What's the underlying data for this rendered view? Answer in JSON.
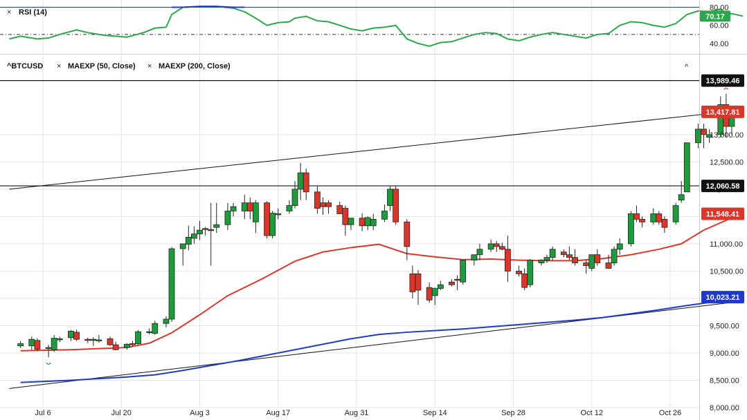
{
  "rsi_panel": {
    "legend": "RSI (14)",
    "ylim": [
      30,
      85
    ],
    "ticks": [
      "80.00",
      "60.00",
      "40.00"
    ],
    "tick_values": [
      80,
      60,
      40
    ],
    "overbought": 80,
    "midline": 50,
    "current_label": "70.17",
    "current_value": 70.17
  },
  "price_panel": {
    "symbol": "^BTCUSD",
    "legend_items": [
      "MAEXP (50, Close)",
      "MAEXP (200, Close)"
    ],
    "ylim": [
      8000,
      14200
    ],
    "y_ticks": [
      "13,000.00",
      "12,500.00",
      "12,000.00",
      "11,500.00",
      "11,000.00",
      "10,500.00",
      "10,000.00",
      "9,500.00",
      "9,000.00",
      "8,500.00",
      "8,000.00"
    ],
    "y_tick_values": [
      13000,
      12500,
      12000,
      11500,
      11000,
      10500,
      10000,
      9500,
      9000,
      8500,
      8000
    ],
    "price_tags": [
      {
        "label": "13,989.46",
        "value": 13989.46,
        "color": "#111111"
      },
      {
        "label": "13,417.81",
        "value": 13417.81,
        "color": "#d9372b"
      },
      {
        "label": "12,060.58",
        "value": 12060.58,
        "color": "#111111"
      },
      {
        "label": "11,548.41",
        "value": 11548.41,
        "color": "#d9372b"
      },
      {
        "label": "10,023.21",
        "value": 10023.21,
        "color": "#1f39c8"
      }
    ],
    "horizontal_lines": [
      13989.46,
      12060.58
    ]
  },
  "x_axis": {
    "labels": [
      "Jul 6",
      "Jul 20",
      "Aug 3",
      "Aug 17",
      "Aug 31",
      "Sep 14",
      "Sep 28",
      "Oct 12",
      "Oct 26"
    ],
    "label_day_index": [
      5,
      19,
      33,
      47,
      61,
      75,
      89,
      103,
      117
    ]
  },
  "colors": {
    "up": "#1f9a3c",
    "down": "#d9372b",
    "ema50": "#d9372b",
    "ema200": "#1f39c8",
    "rsi": "#2aa84a",
    "rsi_overbought": "#1f39c8",
    "grid": "#e4e4e4"
  },
  "chart_data": {
    "type": "candlestick",
    "title": "^BTCUSD",
    "x_unit": "days since Jul 1",
    "candles": [
      {
        "d": 1,
        "o": 9130,
        "h": 9220,
        "l": 9090,
        "c": 9170
      },
      {
        "d": 3,
        "o": 9130,
        "h": 9300,
        "l": 9060,
        "c": 9250
      },
      {
        "d": 4,
        "o": 9230,
        "h": 9270,
        "l": 9030,
        "c": 9070
      },
      {
        "d": 6,
        "o": 9080,
        "h": 9150,
        "l": 8920,
        "c": 9100
      },
      {
        "d": 7,
        "o": 9060,
        "h": 9330,
        "l": 9020,
        "c": 9270
      },
      {
        "d": 8,
        "o": 9250,
        "h": 9300,
        "l": 9200,
        "c": 9260
      },
      {
        "d": 10,
        "o": 9280,
        "h": 9420,
        "l": 9220,
        "c": 9400
      },
      {
        "d": 11,
        "o": 9380,
        "h": 9430,
        "l": 9220,
        "c": 9250
      },
      {
        "d": 13,
        "o": 9250,
        "h": 9280,
        "l": 9180,
        "c": 9230
      },
      {
        "d": 14,
        "o": 9230,
        "h": 9290,
        "l": 9130,
        "c": 9250
      },
      {
        "d": 15,
        "o": 9230,
        "h": 9330,
        "l": 9190,
        "c": 9240
      },
      {
        "d": 17,
        "o": 9260,
        "h": 9300,
        "l": 9130,
        "c": 9150
      },
      {
        "d": 18,
        "o": 9150,
        "h": 9210,
        "l": 9050,
        "c": 9060
      },
      {
        "d": 20,
        "o": 9100,
        "h": 9180,
        "l": 9060,
        "c": 9160
      },
      {
        "d": 21,
        "o": 9170,
        "h": 9220,
        "l": 9120,
        "c": 9150
      },
      {
        "d": 22,
        "o": 9170,
        "h": 9420,
        "l": 9150,
        "c": 9390
      },
      {
        "d": 24,
        "o": 9380,
        "h": 9450,
        "l": 9340,
        "c": 9390
      },
      {
        "d": 25,
        "o": 9360,
        "h": 9590,
        "l": 9330,
        "c": 9540
      },
      {
        "d": 27,
        "o": 9540,
        "h": 9670,
        "l": 9470,
        "c": 9620
      },
      {
        "d": 28,
        "o": 9620,
        "h": 10940,
        "l": 9570,
        "c": 10910
      },
      {
        "d": 30,
        "o": 10910,
        "h": 11000,
        "l": 10600,
        "c": 11000
      },
      {
        "d": 31,
        "o": 10990,
        "h": 11330,
        "l": 10880,
        "c": 11120
      },
      {
        "d": 32,
        "o": 11100,
        "h": 11320,
        "l": 11000,
        "c": 11180
      },
      {
        "d": 33,
        "o": 11180,
        "h": 11420,
        "l": 11070,
        "c": 11250
      },
      {
        "d": 34,
        "o": 11260,
        "h": 11310,
        "l": 11150,
        "c": 11280
      },
      {
        "d": 35,
        "o": 11260,
        "h": 11750,
        "l": 10600,
        "c": 11250
      },
      {
        "d": 36,
        "o": 11300,
        "h": 11750,
        "l": 11200,
        "c": 11350
      },
      {
        "d": 38,
        "o": 11350,
        "h": 11750,
        "l": 11250,
        "c": 11600
      },
      {
        "d": 39,
        "o": 11600,
        "h": 11750,
        "l": 11500,
        "c": 11680
      },
      {
        "d": 41,
        "o": 11600,
        "h": 11900,
        "l": 11450,
        "c": 11750
      },
      {
        "d": 42,
        "o": 11750,
        "h": 11850,
        "l": 11450,
        "c": 11600
      },
      {
        "d": 43,
        "o": 11400,
        "h": 11800,
        "l": 11200,
        "c": 11750
      },
      {
        "d": 45,
        "o": 11750,
        "h": 11780,
        "l": 11100,
        "c": 11150
      },
      {
        "d": 46,
        "o": 11150,
        "h": 11600,
        "l": 11100,
        "c": 11560
      },
      {
        "d": 47,
        "o": 11550,
        "h": 11650,
        "l": 11450,
        "c": 11550
      },
      {
        "d": 49,
        "o": 11600,
        "h": 11800,
        "l": 11550,
        "c": 11700
      },
      {
        "d": 50,
        "o": 11700,
        "h": 12150,
        "l": 11650,
        "c": 12000
      },
      {
        "d": 51,
        "o": 12000,
        "h": 12480,
        "l": 11800,
        "c": 12300
      },
      {
        "d": 52,
        "o": 12300,
        "h": 12380,
        "l": 11800,
        "c": 11950
      },
      {
        "d": 54,
        "o": 11950,
        "h": 12050,
        "l": 11550,
        "c": 11650
      },
      {
        "d": 55,
        "o": 11750,
        "h": 11850,
        "l": 11530,
        "c": 11680
      },
      {
        "d": 56,
        "o": 11750,
        "h": 11800,
        "l": 11550,
        "c": 11680
      },
      {
        "d": 58,
        "o": 11700,
        "h": 11770,
        "l": 11550,
        "c": 11550
      },
      {
        "d": 59,
        "o": 11650,
        "h": 11700,
        "l": 11150,
        "c": 11350
      },
      {
        "d": 60,
        "o": 11350,
        "h": 11450,
        "l": 11250,
        "c": 11470
      },
      {
        "d": 62,
        "o": 11470,
        "h": 11560,
        "l": 11230,
        "c": 11330
      },
      {
        "d": 63,
        "o": 11330,
        "h": 11500,
        "l": 11250,
        "c": 11480
      },
      {
        "d": 64,
        "o": 11330,
        "h": 11550,
        "l": 11250,
        "c": 11450
      },
      {
        "d": 66,
        "o": 11450,
        "h": 11720,
        "l": 11400,
        "c": 11600
      },
      {
        "d": 67,
        "o": 11700,
        "h": 12050,
        "l": 11600,
        "c": 12000
      },
      {
        "d": 68,
        "o": 12000,
        "h": 12070,
        "l": 11350,
        "c": 11400
      },
      {
        "d": 70,
        "o": 11400,
        "h": 11450,
        "l": 10700,
        "c": 10950
      },
      {
        "d": 71,
        "o": 10450,
        "h": 10600,
        "l": 10000,
        "c": 10120
      },
      {
        "d": 72,
        "o": 10450,
        "h": 10520,
        "l": 9880,
        "c": 10150
      },
      {
        "d": 74,
        "o": 10200,
        "h": 10290,
        "l": 9920,
        "c": 9970
      },
      {
        "d": 75,
        "o": 10050,
        "h": 10200,
        "l": 9880,
        "c": 10180
      },
      {
        "d": 76,
        "o": 10180,
        "h": 10320,
        "l": 10150,
        "c": 10250
      },
      {
        "d": 78,
        "o": 10300,
        "h": 10350,
        "l": 10220,
        "c": 10250
      },
      {
        "d": 79,
        "o": 10350,
        "h": 10420,
        "l": 10150,
        "c": 10330
      },
      {
        "d": 80,
        "o": 10300,
        "h": 10700,
        "l": 10250,
        "c": 10700
      },
      {
        "d": 82,
        "o": 10700,
        "h": 10780,
        "l": 10600,
        "c": 10800
      },
      {
        "d": 83,
        "o": 10800,
        "h": 11000,
        "l": 10700,
        "c": 10900
      },
      {
        "d": 85,
        "o": 10900,
        "h": 11080,
        "l": 10850,
        "c": 11000
      },
      {
        "d": 86,
        "o": 11000,
        "h": 11050,
        "l": 10850,
        "c": 10950
      },
      {
        "d": 87,
        "o": 10950,
        "h": 11020,
        "l": 10880,
        "c": 10900
      },
      {
        "d": 88,
        "o": 10900,
        "h": 11150,
        "l": 10300,
        "c": 10500
      },
      {
        "d": 90,
        "o": 10500,
        "h": 10600,
        "l": 10400,
        "c": 10450
      },
      {
        "d": 91,
        "o": 10450,
        "h": 10550,
        "l": 10150,
        "c": 10200
      },
      {
        "d": 92,
        "o": 10250,
        "h": 10720,
        "l": 10200,
        "c": 10700
      },
      {
        "d": 94,
        "o": 10650,
        "h": 10720,
        "l": 10600,
        "c": 10700
      },
      {
        "d": 95,
        "o": 10700,
        "h": 10800,
        "l": 10650,
        "c": 10750
      },
      {
        "d": 96,
        "o": 10750,
        "h": 10950,
        "l": 10700,
        "c": 10900
      },
      {
        "d": 98,
        "o": 10850,
        "h": 10900,
        "l": 10750,
        "c": 10800
      },
      {
        "d": 99,
        "o": 10800,
        "h": 10950,
        "l": 10700,
        "c": 10750
      },
      {
        "d": 100,
        "o": 10750,
        "h": 10900,
        "l": 10600,
        "c": 10650
      },
      {
        "d": 102,
        "o": 10650,
        "h": 10700,
        "l": 10450,
        "c": 10600
      },
      {
        "d": 103,
        "o": 10550,
        "h": 10800,
        "l": 10500,
        "c": 10800
      },
      {
        "d": 104,
        "o": 10800,
        "h": 10900,
        "l": 10600,
        "c": 10650
      },
      {
        "d": 106,
        "o": 10650,
        "h": 10800,
        "l": 10550,
        "c": 10550
      },
      {
        "d": 107,
        "o": 10650,
        "h": 10950,
        "l": 10600,
        "c": 10900
      },
      {
        "d": 108,
        "o": 10900,
        "h": 11100,
        "l": 10800,
        "c": 11000
      },
      {
        "d": 110,
        "o": 11000,
        "h": 11600,
        "l": 10950,
        "c": 11550
      },
      {
        "d": 111,
        "o": 11550,
        "h": 11700,
        "l": 11400,
        "c": 11450
      },
      {
        "d": 112,
        "o": 11450,
        "h": 11500,
        "l": 11300,
        "c": 11400
      },
      {
        "d": 114,
        "o": 11400,
        "h": 11650,
        "l": 11350,
        "c": 11550
      },
      {
        "d": 115,
        "o": 11550,
        "h": 11600,
        "l": 11350,
        "c": 11400
      },
      {
        "d": 116,
        "o": 11450,
        "h": 11500,
        "l": 11200,
        "c": 11300
      },
      {
        "d": 118,
        "o": 11400,
        "h": 11750,
        "l": 11350,
        "c": 11700
      },
      {
        "d": 119,
        "o": 11800,
        "h": 12150,
        "l": 11750,
        "c": 11900
      },
      {
        "d": 120,
        "o": 11950,
        "h": 12850,
        "l": 11950,
        "c": 12850
      },
      {
        "d": 122,
        "o": 12850,
        "h": 13200,
        "l": 12750,
        "c": 13100
      },
      {
        "d": 123,
        "o": 13100,
        "h": 13200,
        "l": 12750,
        "c": 13000
      },
      {
        "d": 124,
        "o": 12950,
        "h": 13100,
        "l": 12850,
        "c": 13000
      },
      {
        "d": 126,
        "o": 13000,
        "h": 13700,
        "l": 12950,
        "c": 13550
      },
      {
        "d": 127,
        "o": 13550,
        "h": 13750,
        "l": 12950,
        "c": 13150
      },
      {
        "d": 128,
        "o": 13150,
        "h": 13450,
        "l": 13000,
        "c": 13417.81
      }
    ],
    "ema50": [
      {
        "d": 1,
        "v": 9040
      },
      {
        "d": 10,
        "v": 9060
      },
      {
        "d": 20,
        "v": 9100
      },
      {
        "d": 24,
        "v": 9180
      },
      {
        "d": 28,
        "v": 9370
      },
      {
        "d": 33,
        "v": 9700
      },
      {
        "d": 38,
        "v": 10050
      },
      {
        "d": 44,
        "v": 10350
      },
      {
        "d": 50,
        "v": 10680
      },
      {
        "d": 55,
        "v": 10850
      },
      {
        "d": 60,
        "v": 10930
      },
      {
        "d": 65,
        "v": 10990
      },
      {
        "d": 70,
        "v": 10820
      },
      {
        "d": 75,
        "v": 10760
      },
      {
        "d": 80,
        "v": 10710
      },
      {
        "d": 85,
        "v": 10720
      },
      {
        "d": 90,
        "v": 10700
      },
      {
        "d": 95,
        "v": 10690
      },
      {
        "d": 100,
        "v": 10690
      },
      {
        "d": 105,
        "v": 10730
      },
      {
        "d": 110,
        "v": 10800
      },
      {
        "d": 115,
        "v": 10900
      },
      {
        "d": 119,
        "v": 11000
      },
      {
        "d": 123,
        "v": 11250
      },
      {
        "d": 127,
        "v": 11430
      },
      {
        "d": 130,
        "v": 11548.41
      }
    ],
    "ema200": [
      {
        "d": 1,
        "v": 8460
      },
      {
        "d": 10,
        "v": 8500
      },
      {
        "d": 20,
        "v": 8560
      },
      {
        "d": 25,
        "v": 8600
      },
      {
        "d": 30,
        "v": 8680
      },
      {
        "d": 40,
        "v": 8860
      },
      {
        "d": 50,
        "v": 9060
      },
      {
        "d": 60,
        "v": 9260
      },
      {
        "d": 65,
        "v": 9340
      },
      {
        "d": 70,
        "v": 9380
      },
      {
        "d": 80,
        "v": 9440
      },
      {
        "d": 90,
        "v": 9520
      },
      {
        "d": 100,
        "v": 9600
      },
      {
        "d": 105,
        "v": 9650
      },
      {
        "d": 110,
        "v": 9720
      },
      {
        "d": 115,
        "v": 9790
      },
      {
        "d": 120,
        "v": 9870
      },
      {
        "d": 125,
        "v": 9940
      },
      {
        "d": 130,
        "v": 10023.21
      }
    ],
    "trendlines": [
      {
        "from": {
          "d": -1,
          "v": 8350
        },
        "to": {
          "d": 130,
          "v": 9950
        }
      },
      {
        "from": {
          "d": -1,
          "v": 12000
        },
        "to": {
          "d": 130,
          "v": 13450
        }
      }
    ],
    "rsi": [
      {
        "d": -1,
        "v": 45
      },
      {
        "d": 1,
        "v": 48
      },
      {
        "d": 4,
        "v": 45
      },
      {
        "d": 6,
        "v": 46
      },
      {
        "d": 8,
        "v": 50
      },
      {
        "d": 11,
        "v": 55
      },
      {
        "d": 13,
        "v": 52
      },
      {
        "d": 16,
        "v": 49
      },
      {
        "d": 20,
        "v": 47
      },
      {
        "d": 23,
        "v": 52
      },
      {
        "d": 25,
        "v": 57
      },
      {
        "d": 27,
        "v": 58
      },
      {
        "d": 28,
        "v": 72
      },
      {
        "d": 30,
        "v": 80
      },
      {
        "d": 33,
        "v": 81
      },
      {
        "d": 36,
        "v": 81
      },
      {
        "d": 39,
        "v": 79
      },
      {
        "d": 41,
        "v": 75
      },
      {
        "d": 43,
        "v": 68
      },
      {
        "d": 45,
        "v": 60
      },
      {
        "d": 47,
        "v": 63
      },
      {
        "d": 49,
        "v": 64
      },
      {
        "d": 50,
        "v": 68
      },
      {
        "d": 52,
        "v": 70
      },
      {
        "d": 54,
        "v": 65
      },
      {
        "d": 56,
        "v": 64
      },
      {
        "d": 58,
        "v": 60
      },
      {
        "d": 60,
        "v": 56
      },
      {
        "d": 62,
        "v": 54
      },
      {
        "d": 64,
        "v": 57
      },
      {
        "d": 66,
        "v": 58
      },
      {
        "d": 68,
        "v": 60
      },
      {
        "d": 70,
        "v": 45
      },
      {
        "d": 72,
        "v": 40
      },
      {
        "d": 74,
        "v": 37
      },
      {
        "d": 76,
        "v": 41
      },
      {
        "d": 78,
        "v": 42
      },
      {
        "d": 80,
        "v": 46
      },
      {
        "d": 82,
        "v": 50
      },
      {
        "d": 84,
        "v": 52
      },
      {
        "d": 86,
        "v": 51
      },
      {
        "d": 88,
        "v": 45
      },
      {
        "d": 90,
        "v": 43
      },
      {
        "d": 92,
        "v": 47
      },
      {
        "d": 94,
        "v": 50
      },
      {
        "d": 96,
        "v": 52
      },
      {
        "d": 98,
        "v": 50
      },
      {
        "d": 100,
        "v": 48
      },
      {
        "d": 102,
        "v": 46
      },
      {
        "d": 104,
        "v": 50
      },
      {
        "d": 106,
        "v": 51
      },
      {
        "d": 108,
        "v": 60
      },
      {
        "d": 110,
        "v": 64
      },
      {
        "d": 112,
        "v": 63
      },
      {
        "d": 114,
        "v": 60
      },
      {
        "d": 116,
        "v": 58
      },
      {
        "d": 118,
        "v": 62
      },
      {
        "d": 120,
        "v": 72
      },
      {
        "d": 122,
        "v": 76
      },
      {
        "d": 124,
        "v": 75
      },
      {
        "d": 126,
        "v": 78
      },
      {
        "d": 127,
        "v": 72
      },
      {
        "d": 128,
        "v": 73
      },
      {
        "d": 130,
        "v": 70.17
      }
    ]
  }
}
